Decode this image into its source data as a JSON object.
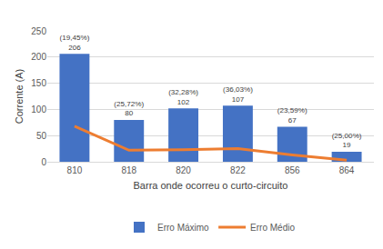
{
  "chart_data": {
    "type": "bar",
    "x_label": "Barra onde ocorreu o curto-circuito",
    "y_label": "Corrente (A)",
    "categories": [
      "810",
      "818",
      "820",
      "822",
      "856",
      "864"
    ],
    "ylim": [
      0,
      250
    ],
    "yticks": [
      0,
      50,
      100,
      150,
      200,
      250
    ],
    "grid": true,
    "legend": "bottom",
    "data_labels": true,
    "series": [
      {
        "name": "Erro Máximo",
        "type": "bar",
        "color": "#4472c4",
        "values": [
          206,
          80,
          102,
          107,
          67,
          19
        ],
        "percent_labels": [
          "(19,45%)",
          "(25,72%)",
          "(32,28%)",
          "(36,03%)",
          "(23,59%)",
          "(25,00%)"
        ]
      },
      {
        "name": "Erro Médio",
        "type": "line",
        "color": "#ed7d31",
        "values": [
          68,
          22,
          23,
          25,
          13,
          3
        ]
      }
    ]
  }
}
